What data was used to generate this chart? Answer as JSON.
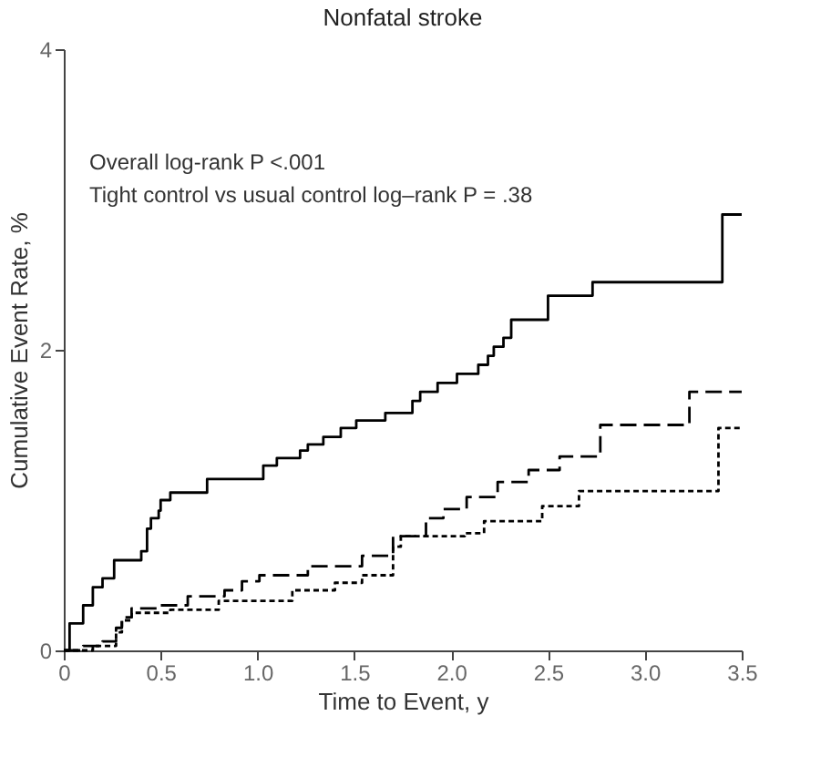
{
  "chart_data": {
    "type": "step",
    "title": "Nonfatal stroke",
    "xlabel": "Time to Event, y",
    "ylabel": "Cumulative Event Rate, %",
    "annotations": [
      "Overall log-rank P <.001",
      "Tight control vs usual control log–rank P = .38"
    ],
    "xlim": [
      0,
      3.5
    ],
    "ylim": [
      0,
      4
    ],
    "xticks": [
      0,
      0.5,
      {
        "value": 1,
        "label": "1.0"
      },
      1.5,
      {
        "value": 2,
        "label": "2.0"
      },
      2.5,
      {
        "value": 3,
        "label": "3.0"
      },
      3.5
    ],
    "yticks": [
      0,
      2,
      4
    ],
    "grid": false,
    "marker": "none",
    "series": [
      {
        "color": "#000000",
        "line_style": "solid",
        "x": [
          0,
          0.03,
          0.1,
          0.15,
          0.2,
          0.26,
          0.4,
          0.43,
          0.45,
          0.49,
          0.5,
          0.55,
          0.74,
          1.03,
          1.1,
          1.22,
          1.26,
          1.34,
          1.43,
          1.51,
          1.66,
          1.8,
          1.84,
          1.93,
          2.03,
          2.14,
          2.19,
          2.22,
          2.27,
          2.31,
          2.5,
          2.73,
          3.4,
          3.5
        ],
        "values": [
          0,
          0.18,
          0.3,
          0.42,
          0.48,
          0.6,
          0.66,
          0.81,
          0.88,
          0.93,
          1.0,
          1.05,
          1.14,
          1.23,
          1.28,
          1.33,
          1.37,
          1.42,
          1.48,
          1.53,
          1.58,
          1.66,
          1.72,
          1.78,
          1.84,
          1.9,
          1.96,
          2.02,
          2.08,
          2.2,
          2.36,
          2.45,
          2.9,
          2.9
        ]
      },
      {
        "color": "#000000",
        "line_style": "dashed",
        "x": [
          0,
          0.1,
          0.2,
          0.27,
          0.3,
          0.35,
          0.49,
          0.64,
          0.83,
          0.92,
          1.01,
          1.26,
          1.54,
          1.7,
          1.87,
          1.96,
          2.08,
          2.24,
          2.4,
          2.56,
          2.77,
          3.23,
          3.5
        ],
        "values": [
          0,
          0.03,
          0.06,
          0.15,
          0.22,
          0.28,
          0.3,
          0.36,
          0.4,
          0.46,
          0.5,
          0.56,
          0.63,
          0.76,
          0.88,
          0.94,
          1.02,
          1.12,
          1.2,
          1.29,
          1.5,
          1.72,
          1.72
        ]
      },
      {
        "color": "#000000",
        "line_style": "dotted",
        "x": [
          0,
          0.15,
          0.27,
          0.3,
          0.35,
          0.55,
          0.8,
          1.18,
          1.4,
          1.54,
          1.7,
          1.74,
          2.07,
          2.17,
          2.47,
          2.66,
          3.38,
          3.5
        ],
        "values": [
          0,
          0.03,
          0.12,
          0.2,
          0.25,
          0.27,
          0.33,
          0.4,
          0.45,
          0.5,
          0.69,
          0.76,
          0.78,
          0.86,
          0.96,
          1.06,
          1.48,
          1.48
        ]
      }
    ]
  }
}
